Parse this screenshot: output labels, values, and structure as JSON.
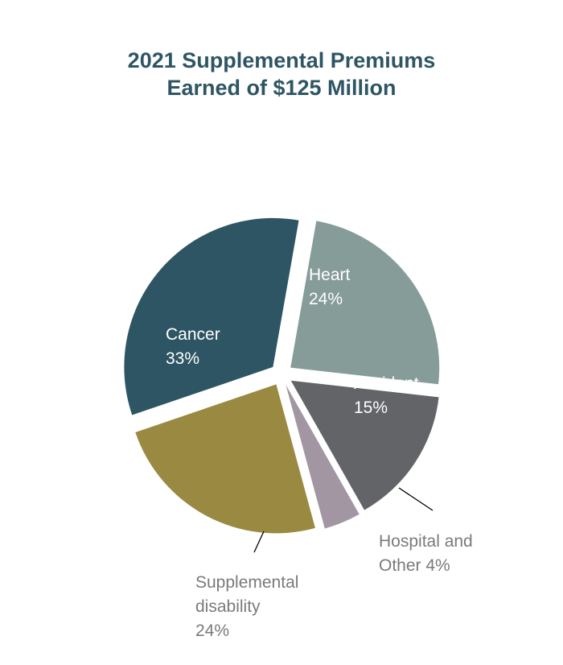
{
  "chart_data": {
    "type": "pie",
    "title_lines": [
      "2021 Supplemental Premiums",
      "Earned of $125 Million"
    ],
    "slices": [
      {
        "label_lines": [
          "Heart",
          "24%"
        ],
        "value": 24,
        "color": "#869c98",
        "label_style": "inside"
      },
      {
        "label_lines": [
          "Accident",
          "15%"
        ],
        "value": 15,
        "color": "#626468",
        "label_style": "inside"
      },
      {
        "label_lines": [
          "Hospital and",
          "Other 4%"
        ],
        "value": 4,
        "color": "#a296a2",
        "label_style": "outside"
      },
      {
        "label_lines": [
          "Supplemental",
          "disability",
          "24%"
        ],
        "value": 24,
        "color": "#9a8a41",
        "label_style": "outside"
      },
      {
        "label_lines": [
          "Cancer",
          "33%"
        ],
        "value": 33,
        "color": "#2e5563",
        "label_style": "inside"
      }
    ],
    "start_angle_deg": 10,
    "direction": "clockwise",
    "exploded": true,
    "legend": "none"
  }
}
